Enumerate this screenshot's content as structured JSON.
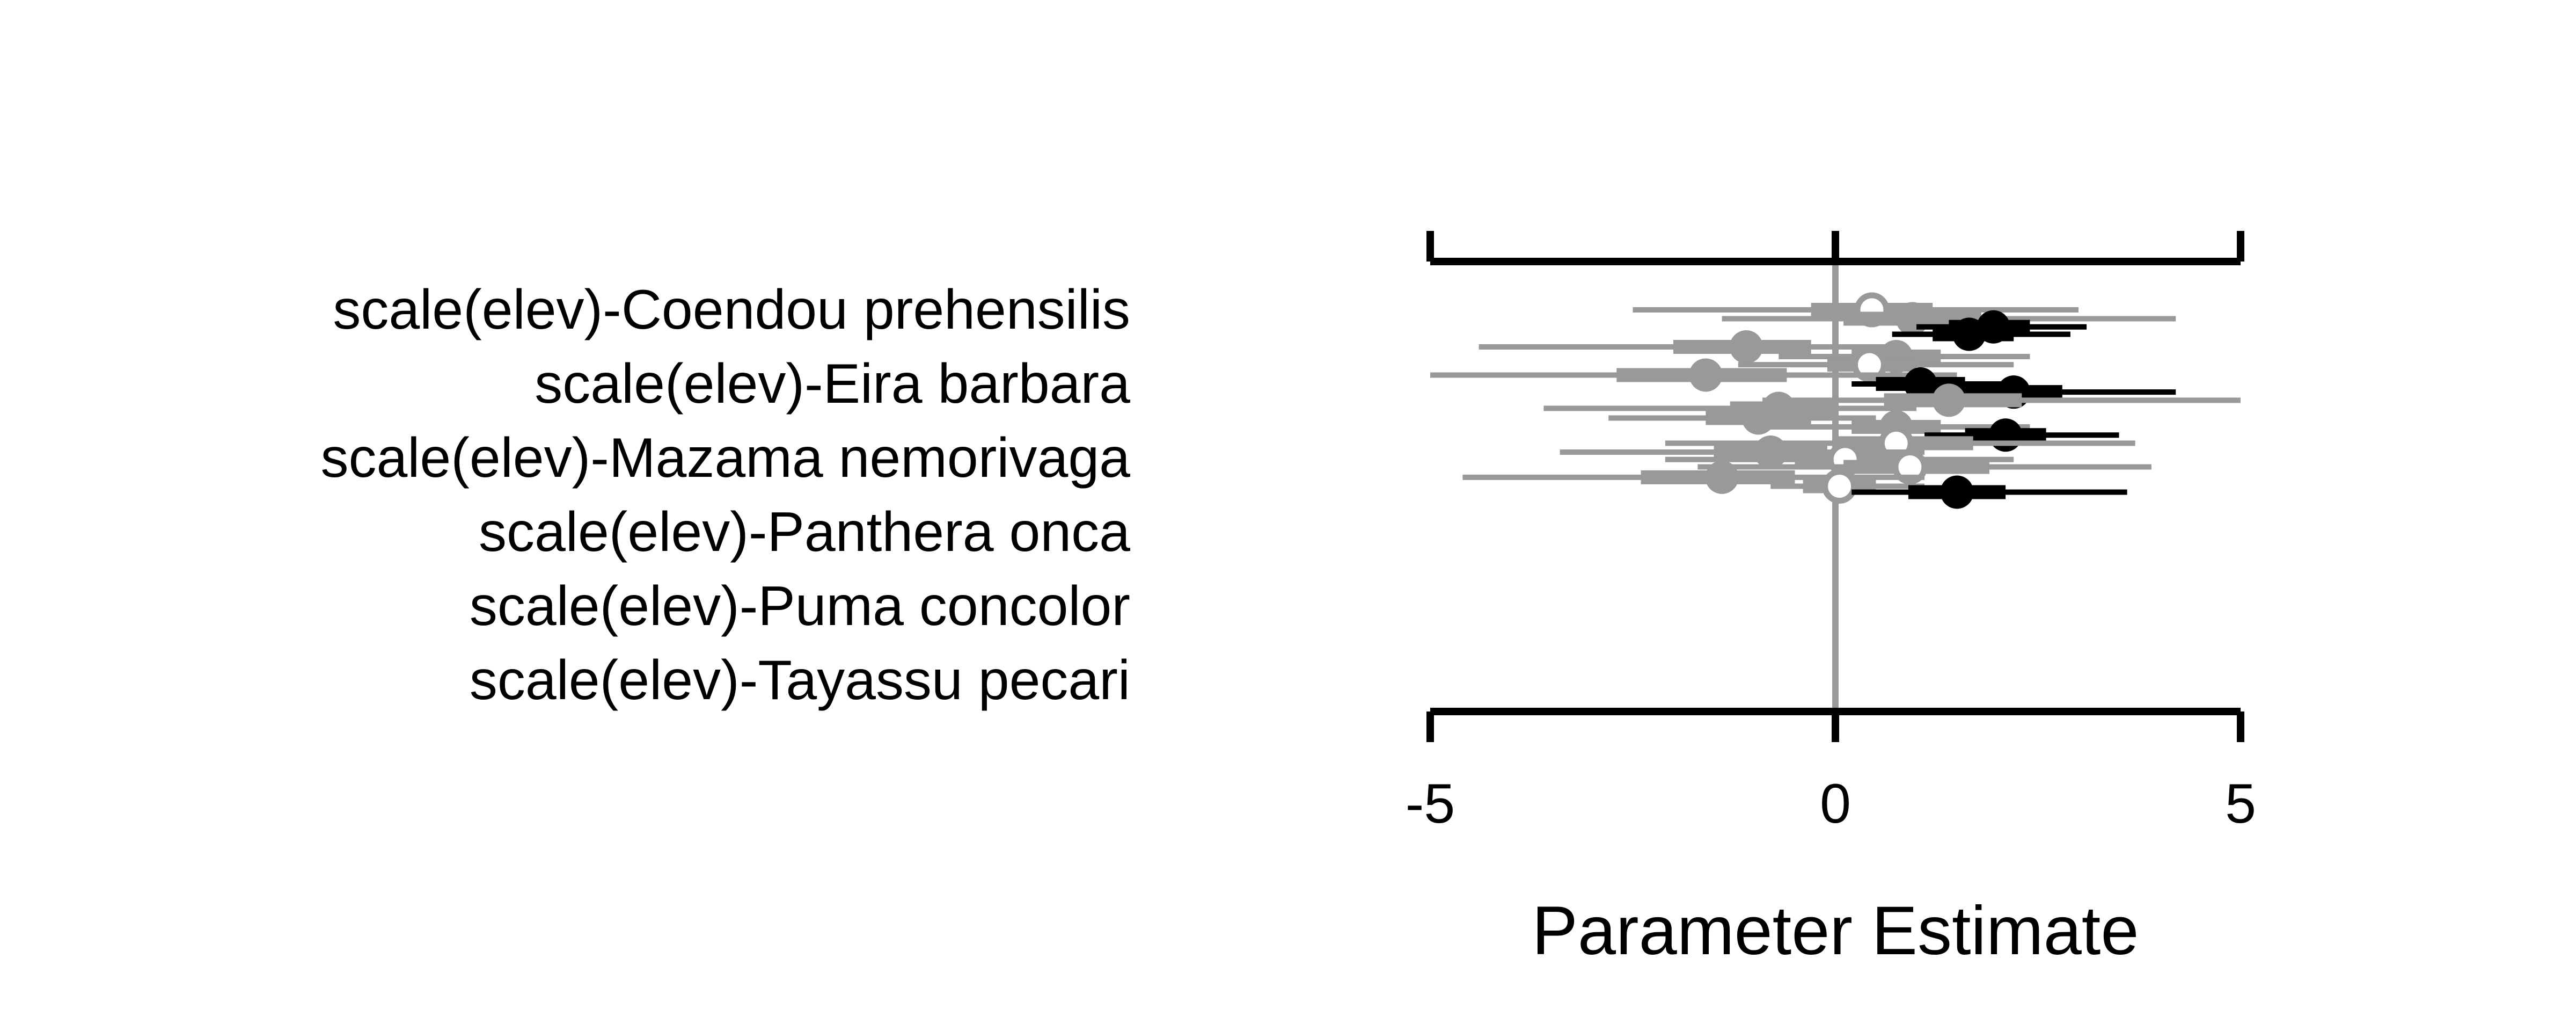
{
  "chart_data": {
    "type": "scatter",
    "title": "",
    "xlabel": "Parameter Estimate",
    "ylabel": "",
    "xlim": [
      -5,
      5
    ],
    "x_ticks": [
      "-5",
      "0",
      "5"
    ],
    "row_labels": [
      "scale(elev)-Coendou prehensilis",
      "scale(elev)-Eira barbara",
      "scale(elev)-Mazama nemorivaga",
      "scale(elev)-Panthera onca",
      "scale(elev)-Puma concolor",
      "scale(elev)-Tayassu pecari"
    ],
    "colors": {
      "significant": "#000000",
      "nonsignificant": "#999999",
      "open_fill": "#ffffff",
      "zero_line": "#999999",
      "axis": "#000000"
    },
    "estimates": [
      {
        "y": 0.5,
        "est": 0.45,
        "in_lo": -0.3,
        "in_hi": 1.2,
        "out_lo": -2.5,
        "out_hi": 3.0,
        "style": "open"
      },
      {
        "y": 0.62,
        "est": 0.95,
        "in_lo": 0.1,
        "in_hi": 1.8,
        "out_lo": -1.4,
        "out_hi": 4.2,
        "style": "gray"
      },
      {
        "y": 0.73,
        "est": 1.95,
        "in_lo": 1.4,
        "in_hi": 2.4,
        "out_lo": 1.0,
        "out_hi": 3.1,
        "style": "black"
      },
      {
        "y": 0.83,
        "est": 1.65,
        "in_lo": 1.2,
        "in_hi": 2.2,
        "out_lo": 0.7,
        "out_hi": 2.9,
        "style": "black"
      },
      {
        "y": 1.0,
        "est": -1.1,
        "in_lo": -2.0,
        "in_hi": -0.3,
        "out_lo": -4.4,
        "out_hi": 0.8,
        "style": "gray"
      },
      {
        "y": 1.13,
        "est": 0.75,
        "in_lo": 0.2,
        "in_hi": 1.3,
        "out_lo": -0.7,
        "out_hi": 2.4,
        "style": "gray"
      },
      {
        "y": 1.24,
        "est": 0.42,
        "in_lo": -0.1,
        "in_hi": 1.0,
        "out_lo": -1.2,
        "out_hi": 2.2,
        "style": "open"
      },
      {
        "y": 1.38,
        "est": -1.6,
        "in_lo": -2.7,
        "in_hi": -0.6,
        "out_lo": -5.0,
        "out_hi": 1.5,
        "style": "gray"
      },
      {
        "y": 1.5,
        "est": 1.05,
        "in_lo": 0.5,
        "in_hi": 1.6,
        "out_lo": 0.2,
        "out_hi": 2.3,
        "style": "black"
      },
      {
        "y": 1.61,
        "est": 2.2,
        "in_lo": 1.6,
        "in_hi": 2.8,
        "out_lo": 1.0,
        "out_hi": 4.2,
        "style": "black"
      },
      {
        "y": 1.72,
        "est": 1.4,
        "in_lo": 0.6,
        "in_hi": 2.3,
        "out_lo": -0.9,
        "out_hi": 5.0,
        "style": "gray"
      },
      {
        "y": 1.83,
        "est": -0.7,
        "in_lo": -1.3,
        "in_hi": 0.0,
        "out_lo": -3.6,
        "out_hi": 1.0,
        "style": "gray"
      },
      {
        "y": 1.96,
        "est": -0.95,
        "in_lo": -1.6,
        "in_hi": -0.3,
        "out_lo": -2.8,
        "out_hi": 0.5,
        "style": "gray"
      },
      {
        "y": 2.08,
        "est": 0.75,
        "in_lo": 0.2,
        "in_hi": 1.3,
        "out_lo": -0.8,
        "out_hi": 2.4,
        "style": "gray"
      },
      {
        "y": 2.19,
        "est": 2.1,
        "in_lo": 1.6,
        "in_hi": 2.6,
        "out_lo": 1.1,
        "out_hi": 3.5,
        "style": "black"
      },
      {
        "y": 2.3,
        "est": 0.75,
        "in_lo": 0.0,
        "in_hi": 1.7,
        "out_lo": -2.1,
        "out_hi": 3.7,
        "style": "open"
      },
      {
        "y": 2.42,
        "est": -0.8,
        "in_lo": -1.5,
        "in_hi": -0.1,
        "out_lo": -3.4,
        "out_hi": 1.1,
        "style": "gray"
      },
      {
        "y": 2.52,
        "est": 0.12,
        "in_lo": -0.5,
        "in_hi": 0.9,
        "out_lo": -2.1,
        "out_hi": 2.2,
        "style": "open"
      },
      {
        "y": 2.62,
        "est": 0.92,
        "in_lo": 0.1,
        "in_hi": 1.9,
        "out_lo": -1.7,
        "out_hi": 3.9,
        "style": "open"
      },
      {
        "y": 2.76,
        "est": -1.4,
        "in_lo": -2.4,
        "in_hi": -0.5,
        "out_lo": -4.6,
        "out_hi": 1.1,
        "style": "gray"
      },
      {
        "y": 2.88,
        "est": 0.05,
        "in_lo": -0.4,
        "in_hi": 0.5,
        "out_lo": -0.8,
        "out_hi": 1.1,
        "style": "open"
      },
      {
        "y": 2.96,
        "est": 1.5,
        "in_lo": 0.9,
        "in_hi": 2.1,
        "out_lo": 0.2,
        "out_hi": 3.6,
        "style": "black"
      }
    ]
  }
}
